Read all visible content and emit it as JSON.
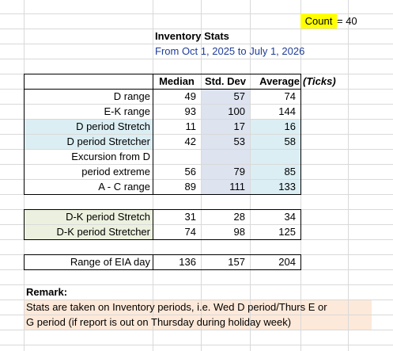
{
  "count": {
    "label": "Count",
    "text": "= 40"
  },
  "header": {
    "title": "Inventory Stats",
    "subtitle": "From Oct 1, 2025 to July 1, 2026"
  },
  "table": {
    "columns": [
      "Median",
      "Std. Dev",
      "Average"
    ],
    "unit": "(Ticks)",
    "rows": [
      {
        "label": "D range",
        "values": [
          49,
          57,
          74
        ]
      },
      {
        "label": "E-K range",
        "values": [
          93,
          100,
          144
        ]
      },
      {
        "label": "D period Stretch",
        "values": [
          11,
          17,
          16
        ]
      },
      {
        "label": "D period Stretcher",
        "values": [
          42,
          53,
          58
        ]
      },
      {
        "label": "Excursion from D"
      },
      {
        "label": "period extreme",
        "values": [
          56,
          79,
          85
        ]
      },
      {
        "label": "A - C range",
        "values": [
          89,
          111,
          133
        ]
      }
    ]
  },
  "table2": {
    "rows": [
      {
        "label": "D-K period Stretch",
        "values": [
          31,
          28,
          34
        ]
      },
      {
        "label": "D-K period Stretcher",
        "values": [
          74,
          98,
          125
        ]
      }
    ]
  },
  "table3": {
    "rows": [
      {
        "label": "Range of EIA day",
        "values": [
          136,
          157,
          204
        ]
      }
    ]
  },
  "remark": {
    "title": "Remark:",
    "lines": [
      "Stats are taken on Inventory periods, i.e. Wed D period/Thurs E or",
      "G period (if report is out on Thursday during holiday week)"
    ]
  }
}
